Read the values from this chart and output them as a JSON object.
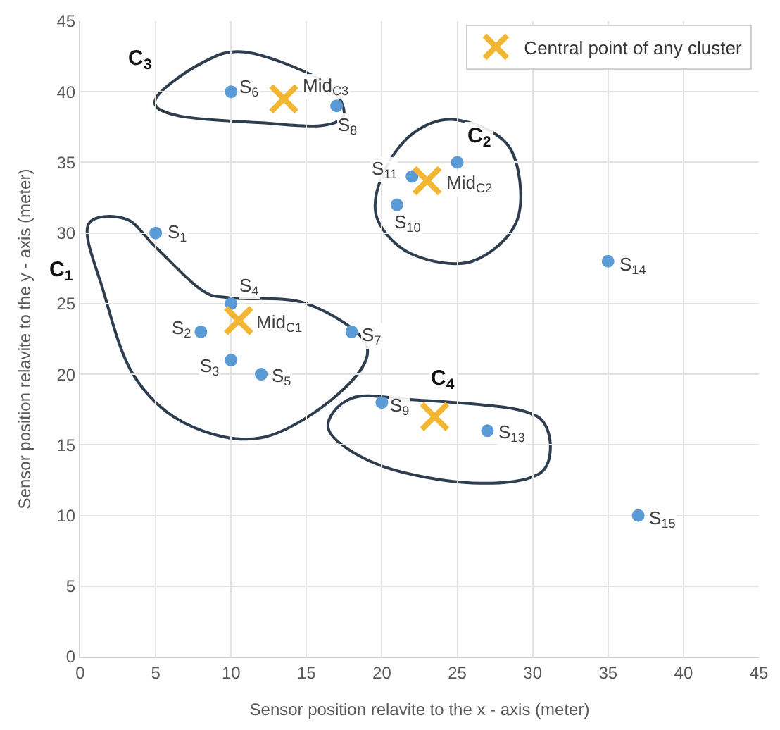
{
  "chart_data": {
    "type": "scatter",
    "xlabel": "Sensor position relavite to the x - axis (meter)",
    "ylabel": "Sensor position relavite to the y - axis (meter)",
    "xlim": [
      0,
      45
    ],
    "xticks": [
      0,
      5,
      10,
      15,
      20,
      25,
      30,
      35,
      40,
      45
    ],
    "ylim": [
      0,
      45
    ],
    "yticks": [
      0,
      5,
      10,
      15,
      20,
      25,
      30,
      35,
      40,
      45
    ],
    "grid": true,
    "legend": "top right",
    "series": [
      {
        "color": "#5b9bd5",
        "marker": "circle",
        "x": [
          5,
          8,
          10,
          10,
          12,
          10,
          18,
          17,
          20,
          21,
          22,
          25,
          27,
          35,
          37
        ],
        "values": [
          30,
          23,
          21,
          25,
          20,
          40,
          23,
          39,
          18,
          32,
          34,
          35,
          16,
          28,
          10
        ]
      },
      {
        "name": "Central point of any cluster",
        "color": "#f2b632",
        "marker": "cross",
        "x": [
          10.5,
          23,
          13.5,
          23.5
        ],
        "values": [
          23.8,
          33.7,
          39.5,
          17
        ]
      }
    ],
    "annotations": [
      {
        "text": "S$_{1}$",
        "x": 5,
        "y": 30
      },
      {
        "text": "S$_{2}$",
        "x": 8,
        "y": 23
      },
      {
        "text": "S$_{3}$",
        "x": 10,
        "y": 21
      },
      {
        "text": "S$_{4}$",
        "x": 10,
        "y": 25
      },
      {
        "text": "S$_{5}$",
        "x": 12,
        "y": 20
      },
      {
        "text": "S$_{6}$",
        "x": 10,
        "y": 40
      },
      {
        "text": "S$_{7}$",
        "x": 18,
        "y": 23
      },
      {
        "text": "S$_{8}$",
        "x": 17,
        "y": 39
      },
      {
        "text": "S$_{9}$",
        "x": 20,
        "y": 18
      },
      {
        "text": "S$_{10}$",
        "x": 21,
        "y": 32
      },
      {
        "text": "S$_{11}$",
        "x": 22,
        "y": 34
      },
      {
        "text": "S$_{13}$",
        "x": 27,
        "y": 16
      },
      {
        "text": "S$_{14}$",
        "x": 35,
        "y": 28
      },
      {
        "text": "S$_{15}$",
        "x": 37,
        "y": 10
      },
      {
        "text": "Mid$_{C1}$",
        "x": 10.5,
        "y": 23.8
      },
      {
        "text": "Mid$_{C2}$",
        "x": 23,
        "y": 33.7
      },
      {
        "text": "Mid$_{C3}$",
        "x": 13.5,
        "y": 39.5
      },
      "C$_{1}$",
      "C$_{2}$",
      "C$_{3}$",
      "C$_{4}$"
    ]
  }
}
